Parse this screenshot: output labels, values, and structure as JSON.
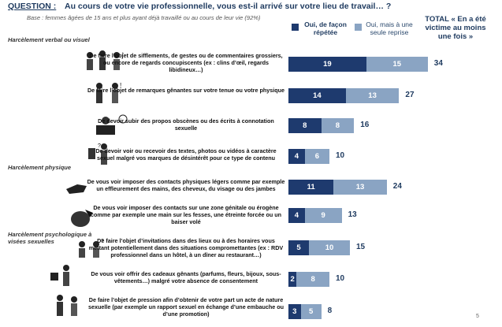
{
  "question_label": "QUESTION :",
  "question_text": "Au cours de votre vie professionnelle, vous est-il arrivé sur votre lieu de travail… ?",
  "base_note": "Base : femmes âgées de 15 ans et plus ayant déjà travaillé ou au cours de leur vie (92%)",
  "total_header": "TOTAL « En a été victime au moins une fois »",
  "sections": [
    "Harcèlement verbal ou visuel",
    "Harcèlement physique",
    "Harcèlement psychologique à visées sexuelles"
  ],
  "page_number": "5",
  "colors": {
    "series1": "#1e3a6e",
    "series2": "#8aa4c3",
    "text": "#1e3a5f"
  },
  "chart_data": {
    "type": "bar",
    "stacked": true,
    "orientation": "horizontal",
    "legend_position": "top",
    "series": [
      {
        "name": "Oui, de façon répétée",
        "values": [
          19,
          14,
          8,
          4,
          11,
          4,
          5,
          2,
          3
        ]
      },
      {
        "name": "Oui, mais à une seule reprise",
        "values": [
          15,
          13,
          8,
          6,
          13,
          9,
          10,
          8,
          5
        ]
      }
    ],
    "totals": [
      34,
      27,
      16,
      10,
      24,
      13,
      15,
      10,
      8
    ],
    "categories": [
      "De faire l’objet de sifflements, de gestes ou de commentaires grossiers, ou encore de regards concupiscents (ex : clins d’œil, regards libidineux…)",
      "De faire l’objet de remarques gênantes sur votre tenue ou votre physique",
      "De devoir subir des propos obscènes ou des écrits à connotation sexuelle",
      "De devoir voir ou recevoir des textes, photos ou vidéos à caractère sexuel malgré vos marques de désintérêt pour ce type de contenu",
      "De vous voir imposer des contacts physiques légers comme par exemple un effleurement des mains, des cheveux, du visage ou des jambes",
      "De vous voir imposer des contacts sur une zone génitale ou érogène comme par exemple une main sur les fesses, une étreinte forcée ou un baiser volé",
      "De faire l’objet d’invitations dans des lieux ou à des horaires vous mettant potentiellement dans des situations compromettantes (ex : RDV professionnel dans un hôtel, à un dîner au restaurant…)",
      "De vous voir offrir des cadeaux gênants (parfums, fleurs, bijoux, sous-vêtements…) malgré votre absence de consentement",
      "De faire l’objet de pression afin d’obtenir de votre part un acte de nature sexuelle (par exemple un rapport sexuel en échange d’une embauche ou d’une promotion)"
    ]
  }
}
